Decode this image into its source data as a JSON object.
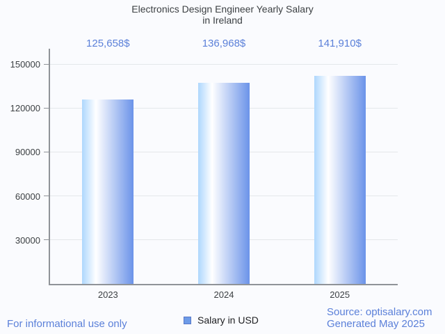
{
  "header": {
    "title_lines": [
      "Electronics Design Engineer Yearly Salary",
      "in Ireland"
    ]
  },
  "chart_data": {
    "type": "bar",
    "title": "Electronics Design Engineer Yearly Salary in Ireland",
    "categories": [
      "2023",
      "2024",
      "2025"
    ],
    "values": [
      125658,
      136968,
      141910
    ],
    "value_labels": [
      "125,658$",
      "136,968$",
      "141,910$"
    ],
    "series": [
      {
        "name": "Salary in USD",
        "values": [
          125658,
          136968,
          141910
        ]
      }
    ],
    "yticks": [
      30000,
      60000,
      90000,
      120000,
      150000
    ],
    "ylim": [
      0,
      160000
    ],
    "xlabel": "",
    "ylabel": "",
    "grid": "horizontal",
    "legend_position": "bottom-center"
  },
  "legend": {
    "label": "Salary in USD"
  },
  "footer": {
    "disclaimer": "For informational use only",
    "source": "Source: optisalary.com",
    "generated": "Generated May 2025"
  },
  "colors": {
    "accent_text": "#5b80d9",
    "text_dark": "#3c4043",
    "legend_text": "#202124",
    "background": "#fafbfe",
    "grid": "#e4e7ea",
    "axis": "#8f9398",
    "bar_gradient": [
      "#aed7fd",
      "#ffffff",
      "#6b93e9"
    ],
    "legend_fill": "#6d9be8",
    "legend_border": "#5878c8"
  }
}
